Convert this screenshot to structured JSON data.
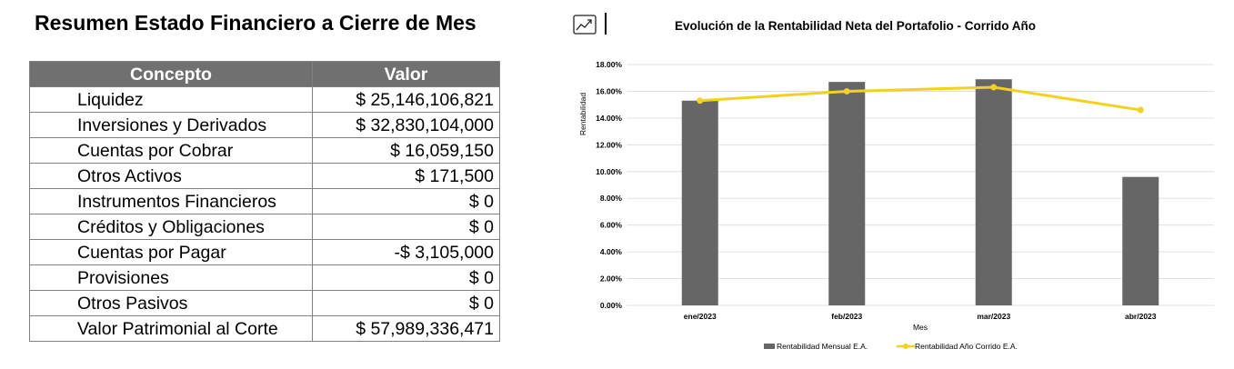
{
  "summary": {
    "title": "Resumen Estado Financiero a Cierre de Mes",
    "headers": [
      "Concepto",
      "Valor"
    ],
    "rows": [
      {
        "concepto": "Liquidez",
        "valor": "$ 25,146,106,821"
      },
      {
        "concepto": "Inversiones y Derivados",
        "valor": "$ 32,830,104,000"
      },
      {
        "concepto": "Cuentas por Cobrar",
        "valor": "$ 16,059,150"
      },
      {
        "concepto": "Otros Activos",
        "valor": "$ 171,500"
      },
      {
        "concepto": "Instrumentos Financieros",
        "valor": "$ 0"
      },
      {
        "concepto": "Créditos y Obligaciones",
        "valor": "$ 0"
      },
      {
        "concepto": "Cuentas por Pagar",
        "valor": "-$ 3,105,000"
      },
      {
        "concepto": "Provisiones",
        "valor": "$ 0"
      },
      {
        "concepto": "Otros Pasivos",
        "valor": "$ 0"
      },
      {
        "concepto": "Valor Patrimonial al Corte",
        "valor": "$ 57,989,336,471"
      }
    ]
  },
  "chart_header": {
    "icon": "trend-chart-icon"
  },
  "chart_data": {
    "type": "bar",
    "title": "Evolución de la Rentabilidad Neta del Portafolio - Corrido Año",
    "xlabel": "Mes",
    "ylabel": "Rentabilidad",
    "categories": [
      "ene/2023",
      "feb/2023",
      "mar/2023",
      "abr/2023"
    ],
    "ylim": [
      0,
      18
    ],
    "yticks": [
      "0.00%",
      "2.00%",
      "4.00%",
      "6.00%",
      "8.00%",
      "10.00%",
      "12.00%",
      "14.00%",
      "16.00%",
      "18.00%"
    ],
    "grid": true,
    "legend_position": "bottom",
    "series": [
      {
        "name": "Rentabilidad Mensual E.A.",
        "type": "bar",
        "color": "#666666",
        "values": [
          15.3,
          16.7,
          16.9,
          9.6
        ]
      },
      {
        "name": "Rentabilidad Año Corrido E.A.",
        "type": "line",
        "color": "#f2d21b",
        "values": [
          15.3,
          16.0,
          16.3,
          14.6
        ]
      }
    ]
  }
}
